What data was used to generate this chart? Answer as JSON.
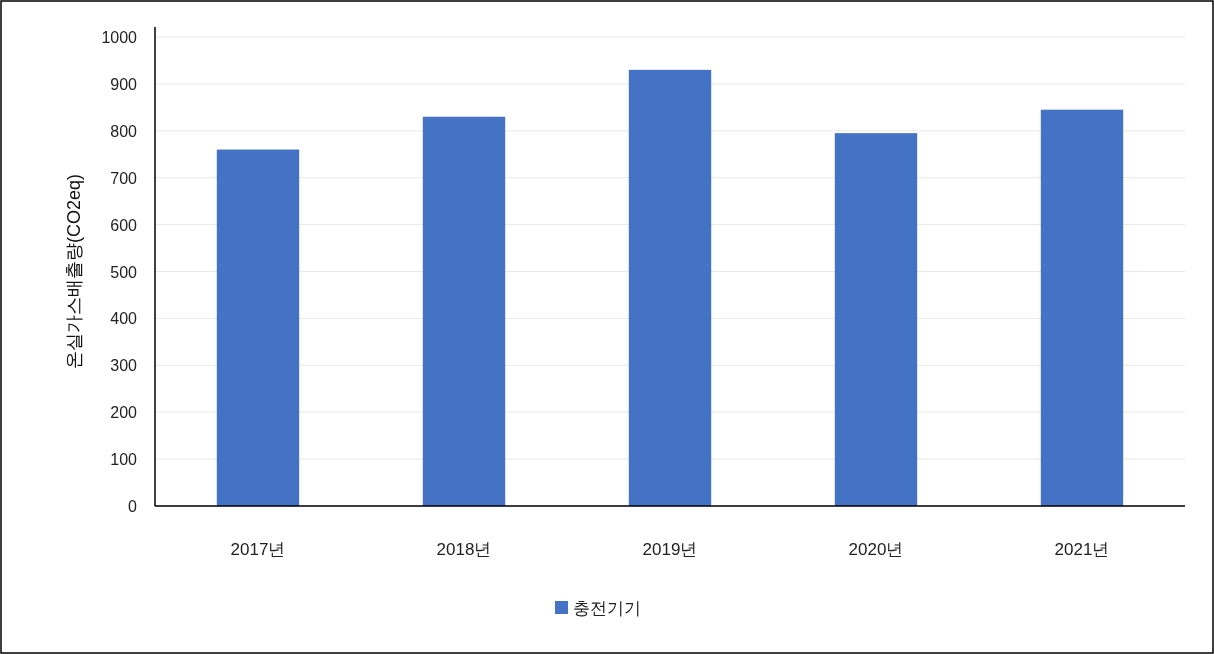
{
  "chart_data": {
    "type": "bar",
    "ylabel": "온실가스배출량(CO2eq)",
    "categories": [
      "2017년",
      "2018년",
      "2019년",
      "2020년",
      "2021년"
    ],
    "series": [
      {
        "name": "충전기기",
        "color": "#4472c4",
        "values": [
          760,
          830,
          930,
          795,
          845
        ]
      }
    ],
    "ylim": [
      0,
      1000
    ],
    "yticks": [
      0,
      100,
      200,
      300,
      400,
      500,
      600,
      700,
      800,
      900,
      1000
    ],
    "grid": "y",
    "legend": "bottom"
  }
}
